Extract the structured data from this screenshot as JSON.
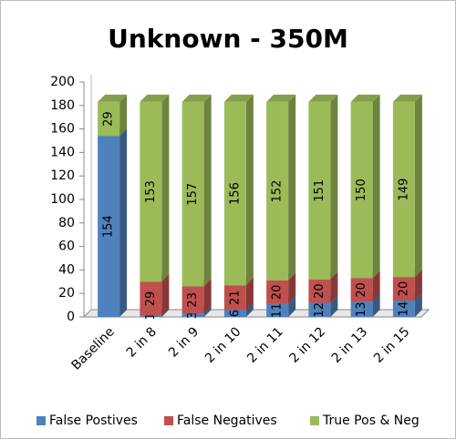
{
  "chart_data": {
    "type": "bar",
    "stacked": true,
    "title": "Unknown - 350M",
    "categories": [
      "Baseline",
      "2 in 8",
      "2 in 9",
      "2 in 10",
      "2 in 11",
      "2 in 12",
      "2 in 13",
      "2 in 15"
    ],
    "series": [
      {
        "name": "False Postives",
        "color": "#4f81bd",
        "values": [
          154,
          1,
          3,
          6,
          11,
          12,
          13,
          14
        ]
      },
      {
        "name": "False Negatives",
        "color": "#c0504d",
        "values": [
          null,
          29,
          23,
          21,
          20,
          20,
          20,
          20
        ]
      },
      {
        "name": "True Pos & Neg",
        "color": "#9bbb59",
        "values": [
          29,
          153,
          157,
          156,
          152,
          151,
          150,
          149
        ]
      }
    ],
    "ylim": [
      0,
      200
    ],
    "yticks": [
      0,
      20,
      40,
      60,
      80,
      100,
      120,
      140,
      160,
      180,
      200
    ],
    "grid": false,
    "legend": "bottom"
  }
}
